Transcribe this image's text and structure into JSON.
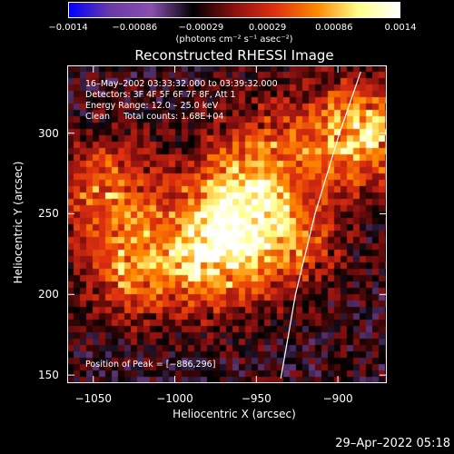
{
  "colorbar": {
    "ticks": [
      "−0.0014",
      "−0.00086",
      "−0.00029",
      "0.00029",
      "0.00086",
      "0.0014"
    ],
    "unit_label": "(photons cm⁻² s⁻¹ asec⁻²)"
  },
  "title": "Reconstructed RHESSI Image",
  "info": {
    "time_range": "16–May–2002 03:33:32.000 to 03:39:32.000",
    "detectors": "Detectors: 3F 4F 5F 6F 7F 8F, Att 1",
    "energy_range": "Energy Range: 12.0 – 25.0 keV",
    "algorithm": "Clean     Total counts: 1.68E+04",
    "peak": "Position of Peak = [−886,296]"
  },
  "axes": {
    "xlabel": "Heliocentric X (arcsec)",
    "ylabel": "Heliocentric Y (arcsec)",
    "xticks": [
      "−1050",
      "−1000",
      "−950",
      "−900"
    ],
    "yticks": [
      "150",
      "200",
      "250",
      "300"
    ]
  },
  "timestamp": "29–Apr–2022 05:18",
  "chart_data": {
    "type": "heatmap",
    "title": "Reconstructed RHESSI Image",
    "xlabel": "Heliocentric X (arcsec)",
    "ylabel": "Heliocentric Y (arcsec)",
    "xlim": [
      -1066,
      -870
    ],
    "ylim": [
      145,
      342
    ],
    "xticks": [
      -1050,
      -1000,
      -950,
      -900
    ],
    "yticks": [
      150,
      200,
      250,
      300
    ],
    "colorbar_range": [
      -0.0014,
      0.0014
    ],
    "colorbar_ticks": [
      -0.0014,
      -0.00086,
      -0.00029,
      0.00029,
      0.00086,
      0.0014
    ],
    "peak_position": [
      -886,
      296
    ],
    "bright_sources": [
      {
        "x": -886,
        "y": 300,
        "value": 0.0014
      },
      {
        "x": -975,
        "y": 222,
        "value": 0.0013
      },
      {
        "x": -965,
        "y": 258,
        "value": 0.0012
      },
      {
        "x": -1025,
        "y": 218,
        "value": 0.001
      },
      {
        "x": -1040,
        "y": 265,
        "value": 0.0009
      },
      {
        "x": -930,
        "y": 235,
        "value": 0.0009
      },
      {
        "x": -940,
        "y": 290,
        "value": 0.0007
      }
    ],
    "limb_curve": [
      [
        -935,
        148
      ],
      [
        -926,
        200
      ],
      [
        -914,
        250
      ],
      [
        -899,
        300
      ],
      [
        -886,
        338
      ]
    ],
    "colors": {
      "colormap": [
        "#0000ff",
        "#6a3aa8",
        "#8a4fb0",
        "#000000",
        "#8a1010",
        "#e03010",
        "#ff8800",
        "#ffff88",
        "#ffffff"
      ],
      "limb": "#ffffff"
    }
  }
}
